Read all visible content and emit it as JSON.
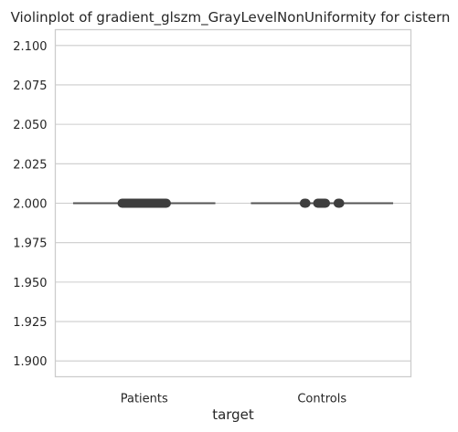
{
  "chart_data": {
    "type": "violin",
    "title": "Violinplot of gradient_glszm_GrayLevelNonUniformity for cistern",
    "xlabel": "target",
    "ylabel": "",
    "categories": [
      "Patients",
      "Controls"
    ],
    "ylim": [
      1.89,
      2.11
    ],
    "yticks": [
      1.9,
      1.925,
      1.95,
      1.975,
      2.0,
      2.025,
      2.05,
      2.075,
      2.1
    ],
    "ytick_labels": [
      "1.900",
      "1.925",
      "1.950",
      "1.975",
      "2.000",
      "2.025",
      "2.050",
      "2.075",
      "2.100"
    ],
    "grid": true,
    "series": [
      {
        "category": "Patients",
        "value": 2.0,
        "point_range": [
          -0.145,
          0.145
        ]
      },
      {
        "category": "Controls",
        "value": 2.0,
        "point_range": [
          -0.12,
          0.12
        ],
        "gaps": [
          [
            -0.07,
            -0.045
          ],
          [
            0.04,
            0.07
          ]
        ]
      }
    ],
    "colors": {
      "line": "#555555",
      "points": "#3d3d3d",
      "grid": "#cccccc"
    }
  }
}
